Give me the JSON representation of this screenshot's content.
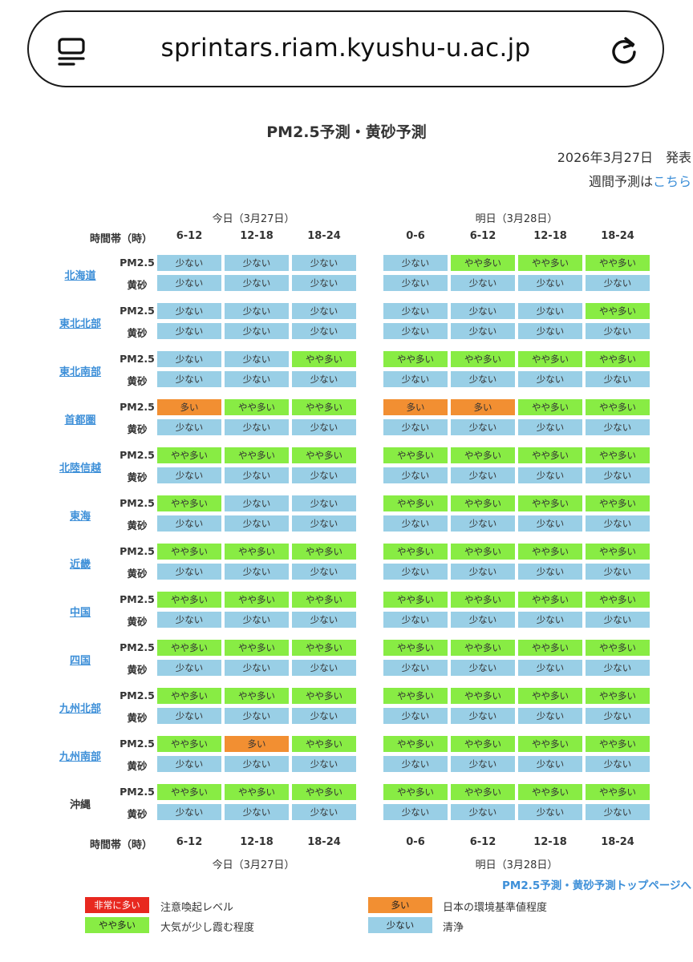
{
  "browser": {
    "url": "sprintars.riam.kyushu-u.ac.jp"
  },
  "header": {
    "title": "PM2.5予測・黄砂予測",
    "date": "2026年3月27日　発表",
    "weekly_prefix": "週間予測は",
    "weekly_link": "こちら"
  },
  "table": {
    "time_label": "時間帯（時）",
    "days": [
      {
        "label": "今日（3月27日）",
        "slots": [
          "6-12",
          "12-18",
          "18-24"
        ]
      },
      {
        "label": "明日（3月28日）",
        "slots": [
          "0-6",
          "6-12",
          "12-18",
          "18-24"
        ]
      }
    ],
    "types": [
      "PM2.5",
      "黄砂"
    ],
    "regions": [
      {
        "name": "北海道",
        "link": true,
        "pm25": [
          "少ない",
          "少ない",
          "少ない",
          "少ない",
          "やや多い",
          "やや多い",
          "やや多い"
        ],
        "kosa": [
          "少ない",
          "少ない",
          "少ない",
          "少ない",
          "少ない",
          "少ない",
          "少ない"
        ]
      },
      {
        "name": "東北北部",
        "link": true,
        "pm25": [
          "少ない",
          "少ない",
          "少ない",
          "少ない",
          "少ない",
          "少ない",
          "やや多い"
        ],
        "kosa": [
          "少ない",
          "少ない",
          "少ない",
          "少ない",
          "少ない",
          "少ない",
          "少ない"
        ]
      },
      {
        "name": "東北南部",
        "link": true,
        "pm25": [
          "少ない",
          "少ない",
          "やや多い",
          "やや多い",
          "やや多い",
          "やや多い",
          "やや多い"
        ],
        "kosa": [
          "少ない",
          "少ない",
          "少ない",
          "少ない",
          "少ない",
          "少ない",
          "少ない"
        ]
      },
      {
        "name": "首都圏",
        "link": true,
        "pm25": [
          "多い",
          "やや多い",
          "やや多い",
          "多い",
          "多い",
          "やや多い",
          "やや多い"
        ],
        "kosa": [
          "少ない",
          "少ない",
          "少ない",
          "少ない",
          "少ない",
          "少ない",
          "少ない"
        ]
      },
      {
        "name": "北陸信越",
        "link": true,
        "pm25": [
          "やや多い",
          "やや多い",
          "やや多い",
          "やや多い",
          "やや多い",
          "やや多い",
          "やや多い"
        ],
        "kosa": [
          "少ない",
          "少ない",
          "少ない",
          "少ない",
          "少ない",
          "少ない",
          "少ない"
        ]
      },
      {
        "name": "東海",
        "link": true,
        "pm25": [
          "やや多い",
          "少ない",
          "少ない",
          "やや多い",
          "やや多い",
          "やや多い",
          "やや多い"
        ],
        "kosa": [
          "少ない",
          "少ない",
          "少ない",
          "少ない",
          "少ない",
          "少ない",
          "少ない"
        ]
      },
      {
        "name": "近畿",
        "link": true,
        "pm25": [
          "やや多い",
          "やや多い",
          "やや多い",
          "やや多い",
          "やや多い",
          "やや多い",
          "やや多い"
        ],
        "kosa": [
          "少ない",
          "少ない",
          "少ない",
          "少ない",
          "少ない",
          "少ない",
          "少ない"
        ]
      },
      {
        "name": "中国",
        "link": true,
        "pm25": [
          "やや多い",
          "やや多い",
          "やや多い",
          "やや多い",
          "やや多い",
          "やや多い",
          "やや多い"
        ],
        "kosa": [
          "少ない",
          "少ない",
          "少ない",
          "少ない",
          "少ない",
          "少ない",
          "少ない"
        ]
      },
      {
        "name": "四国",
        "link": true,
        "pm25": [
          "やや多い",
          "やや多い",
          "やや多い",
          "やや多い",
          "やや多い",
          "やや多い",
          "やや多い"
        ],
        "kosa": [
          "少ない",
          "少ない",
          "少ない",
          "少ない",
          "少ない",
          "少ない",
          "少ない"
        ]
      },
      {
        "name": "九州北部",
        "link": true,
        "pm25": [
          "やや多い",
          "やや多い",
          "やや多い",
          "やや多い",
          "やや多い",
          "やや多い",
          "やや多い"
        ],
        "kosa": [
          "少ない",
          "少ない",
          "少ない",
          "少ない",
          "少ない",
          "少ない",
          "少ない"
        ]
      },
      {
        "name": "九州南部",
        "link": true,
        "pm25": [
          "やや多い",
          "多い",
          "やや多い",
          "やや多い",
          "やや多い",
          "やや多い",
          "やや多い"
        ],
        "kosa": [
          "少ない",
          "少ない",
          "少ない",
          "少ない",
          "少ない",
          "少ない",
          "少ない"
        ]
      },
      {
        "name": "沖縄",
        "link": false,
        "pm25": [
          "やや多い",
          "やや多い",
          "やや多い",
          "やや多い",
          "やや多い",
          "やや多い",
          "やや多い"
        ],
        "kosa": [
          "少ない",
          "少ない",
          "少ない",
          "少ない",
          "少ない",
          "少ない",
          "少ない"
        ]
      }
    ]
  },
  "levels": {
    "非常に多い": "#e8281f",
    "多い": "#f28f32",
    "やや多い": "#88ec44",
    "少ない": "#99cfe6"
  },
  "top_link": "PM2.5予測・黄砂予測トップページへ",
  "legend": [
    {
      "label": "非常に多い",
      "desc": "注意喚起レベル"
    },
    {
      "label": "多い",
      "desc": "日本の環境基準値程度"
    },
    {
      "label": "やや多い",
      "desc": "大気が少し霞む程度"
    },
    {
      "label": "少ない",
      "desc": "清浄"
    }
  ]
}
